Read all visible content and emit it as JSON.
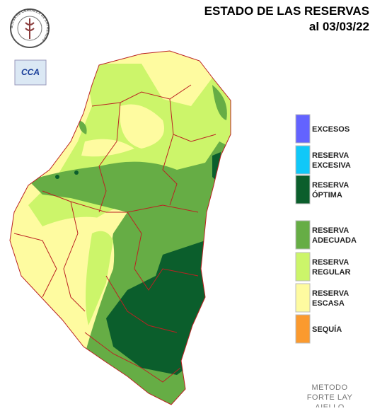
{
  "header": {
    "title": "ESTADO DE LAS RESERVAS",
    "date": "al 03/03/22"
  },
  "logo": {
    "ring_text": "BOLSA DE CEREALES DE ENTRE RIOS",
    "badge": "CCA"
  },
  "legend": [
    {
      "lines": [
        "EXCESOS"
      ],
      "color": "#6363ff"
    },
    {
      "lines": [
        "RESERVA",
        "EXCESIVA"
      ],
      "color": "#10c8f8"
    },
    {
      "lines": [
        "RESERVA",
        "ÓPTIMA"
      ],
      "color": "#0b5e2c"
    },
    {
      "lines": [
        "RESERVA",
        "ADECUADA"
      ],
      "color": "#66ad45"
    },
    {
      "lines": [
        "RESERVA",
        "REGULAR"
      ],
      "color": "#ccf56a"
    },
    {
      "lines": [
        "RESERVA",
        "ESCASA"
      ],
      "color": "#fefba0"
    },
    {
      "lines": [
        "SEQUÍA"
      ],
      "color": "#fb9a2e"
    }
  ],
  "footer": {
    "lines": [
      "METODO",
      "FORTE LAY",
      "AIELLO"
    ]
  }
}
